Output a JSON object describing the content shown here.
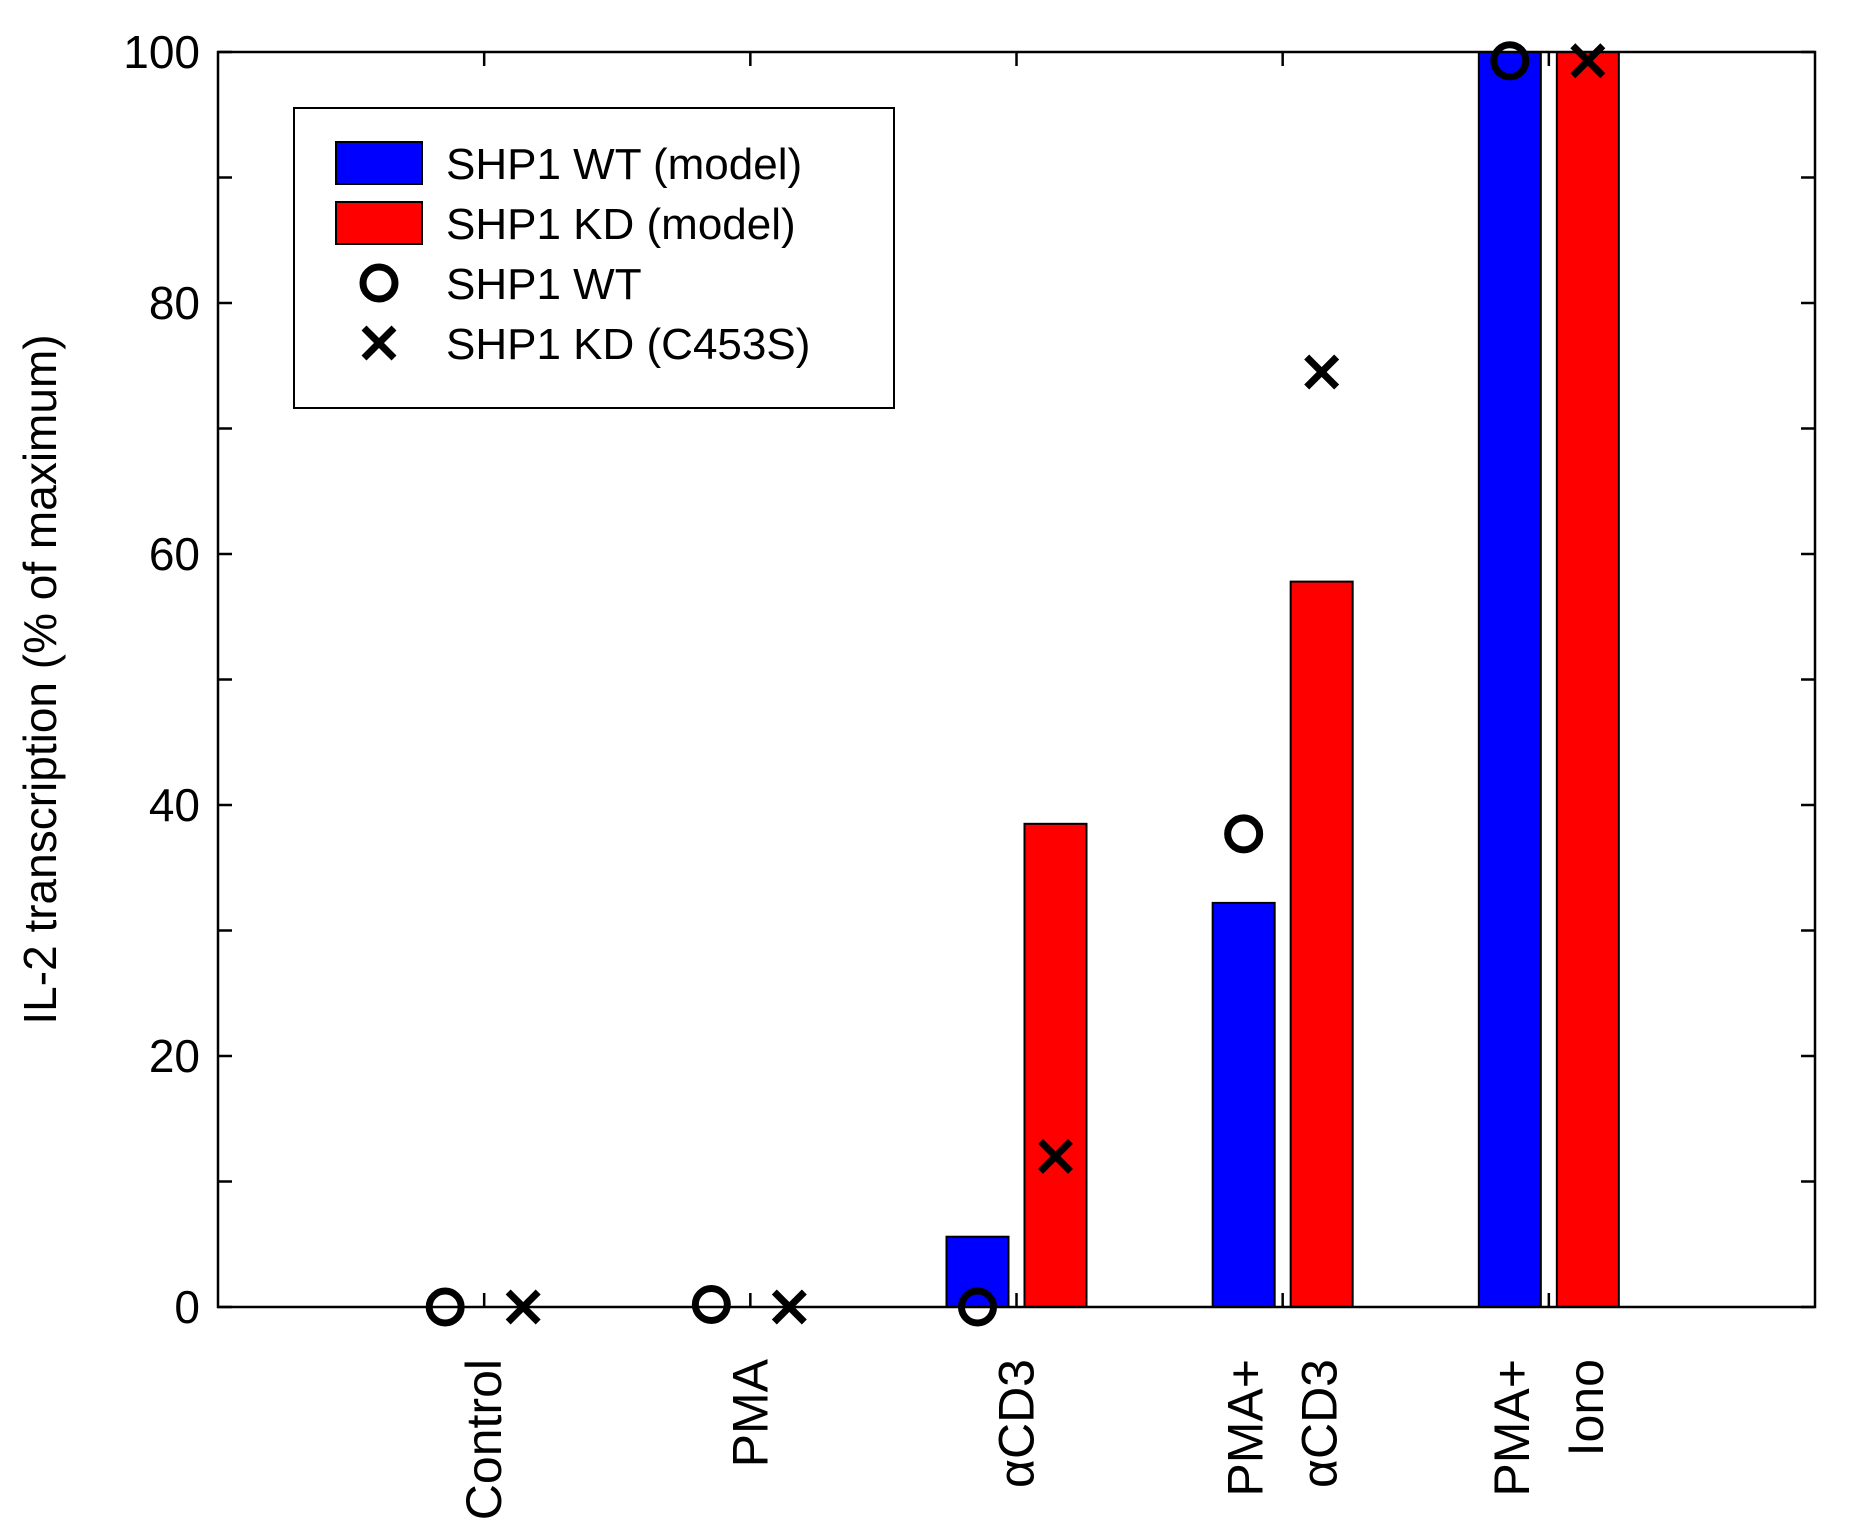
{
  "chart_data": {
    "type": "bar",
    "title": "",
    "xlabel": "",
    "ylabel": "IL-2 transcription (% of maximum)",
    "ylim": [
      0,
      100
    ],
    "yticks": [
      0,
      20,
      40,
      60,
      80,
      100
    ],
    "categories": [
      [
        "Control"
      ],
      [
        "PMA"
      ],
      [
        "αCD3"
      ],
      [
        "PMA+",
        "αCD3"
      ],
      [
        "PMA+",
        "Iono"
      ]
    ],
    "series": [
      {
        "name": "SHP1 WT (model)",
        "kind": "bar",
        "color": "#0000ff",
        "values": [
          0,
          0,
          5.6,
          32.2,
          100
        ]
      },
      {
        "name": "SHP1 KD (model)",
        "kind": "bar",
        "color": "#ff0000",
        "values": [
          0,
          0,
          38.5,
          57.8,
          100
        ]
      },
      {
        "name": "SHP1 WT",
        "kind": "marker",
        "marker": "circle",
        "color": "#000000",
        "values": [
          0,
          0.2,
          0,
          37.7,
          99.3
        ]
      },
      {
        "name": "SHP1 KD (C453S)",
        "kind": "marker",
        "marker": "x",
        "color": "#000000",
        "values": [
          0,
          0,
          12,
          74.5,
          99.3
        ]
      }
    ],
    "legend": {
      "position": "top-left"
    },
    "grid": false
  }
}
